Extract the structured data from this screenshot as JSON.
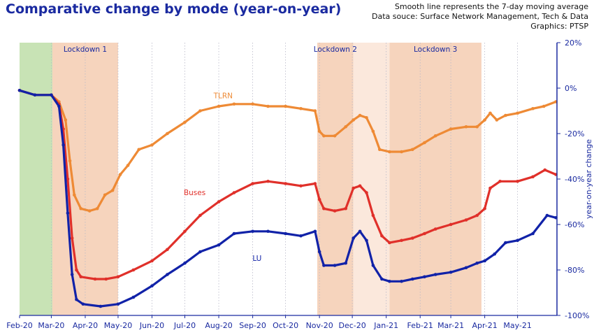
{
  "header": {
    "title": "Comparative change by mode (year-on-year)",
    "notes": [
      "Smooth line represents the 7-day moving average",
      "Data souce: Surface Network Management, Tech & Data",
      "Graphics: PTSP"
    ]
  },
  "chart_data": {
    "type": "line",
    "title": "Comparative change by mode (year-on-year)",
    "xlabel": "",
    "ylabel": "year-on-year change",
    "x_ticks": [
      "Feb-20",
      "Mar-20",
      "Apr-20",
      "May-20",
      "Jun-20",
      "Jul-20",
      "Aug-20",
      "Sep-20",
      "Oct-20",
      "Nov-20",
      "Dec-20",
      "Jan-21",
      "Feb-21",
      "Mar-21",
      "Apr-21",
      "May-21"
    ],
    "y_ticks": [
      "20%",
      "0%",
      "-20%",
      "-40%",
      "-60%",
      "-80%",
      "-100%"
    ],
    "ylim": [
      -100,
      20
    ],
    "xlim": [
      "2020-02-01",
      "2021-06-06"
    ],
    "grid": "vertical dotted monthly gridlines",
    "y_axis_side": "right",
    "shaded_periods": [
      {
        "label": "",
        "start": "2020-02-01",
        "end": "2020-03-02",
        "color": "#c8e3b5"
      },
      {
        "label": "Lockdown 1",
        "start": "2020-03-02",
        "end": "2020-05-01",
        "color": "#f6d4bd"
      },
      {
        "label": "Lockdown 2",
        "start": "2020-10-30",
        "end": "2020-12-02",
        "color": "#f6d4bd"
      },
      {
        "label": "",
        "start": "2020-12-02",
        "end": "2021-01-04",
        "color": "#fbe8dc"
      },
      {
        "label": "Lockdown 3",
        "start": "2021-01-04",
        "end": "2021-03-29",
        "color": "#f6d4bd"
      }
    ],
    "series": [
      {
        "name": "TLRN",
        "color": "#ee8a35",
        "points": [
          [
            "2020-02-01",
            -1
          ],
          [
            "2020-02-15",
            -3
          ],
          [
            "2020-03-01",
            -3
          ],
          [
            "2020-03-08",
            -6
          ],
          [
            "2020-03-14",
            -14
          ],
          [
            "2020-03-18",
            -32
          ],
          [
            "2020-03-22",
            -47
          ],
          [
            "2020-03-28",
            -53
          ],
          [
            "2020-04-05",
            -54
          ],
          [
            "2020-04-12",
            -53
          ],
          [
            "2020-04-19",
            -47
          ],
          [
            "2020-04-26",
            -45
          ],
          [
            "2020-05-03",
            -38
          ],
          [
            "2020-05-10",
            -34
          ],
          [
            "2020-05-20",
            -27
          ],
          [
            "2020-06-01",
            -25
          ],
          [
            "2020-06-15",
            -20
          ],
          [
            "2020-07-01",
            -15
          ],
          [
            "2020-07-15",
            -10
          ],
          [
            "2020-08-01",
            -8
          ],
          [
            "2020-08-15",
            -7
          ],
          [
            "2020-09-01",
            -7
          ],
          [
            "2020-09-15",
            -8
          ],
          [
            "2020-10-01",
            -8
          ],
          [
            "2020-10-15",
            -9
          ],
          [
            "2020-10-28",
            -10
          ],
          [
            "2020-11-01",
            -19
          ],
          [
            "2020-11-05",
            -21
          ],
          [
            "2020-11-15",
            -21
          ],
          [
            "2020-11-25",
            -17
          ],
          [
            "2020-12-02",
            -14
          ],
          [
            "2020-12-08",
            -12
          ],
          [
            "2020-12-14",
            -13
          ],
          [
            "2020-12-20",
            -19
          ],
          [
            "2020-12-26",
            -27
          ],
          [
            "2021-01-04",
            -28
          ],
          [
            "2021-01-15",
            -28
          ],
          [
            "2021-01-25",
            -27
          ],
          [
            "2021-02-05",
            -24
          ],
          [
            "2021-02-15",
            -21
          ],
          [
            "2021-03-01",
            -18
          ],
          [
            "2021-03-15",
            -17
          ],
          [
            "2021-03-25",
            -17
          ],
          [
            "2021-04-01",
            -14
          ],
          [
            "2021-04-06",
            -11
          ],
          [
            "2021-04-12",
            -14
          ],
          [
            "2021-04-20",
            -12
          ],
          [
            "2021-05-01",
            -11
          ],
          [
            "2021-05-15",
            -9
          ],
          [
            "2021-05-25",
            -8
          ],
          [
            "2021-06-05",
            -6
          ]
        ]
      },
      {
        "name": "Buses",
        "color": "#e0302a",
        "points": [
          [
            "2020-02-01",
            -1
          ],
          [
            "2020-02-15",
            -3
          ],
          [
            "2020-03-01",
            -3
          ],
          [
            "2020-03-08",
            -7
          ],
          [
            "2020-03-12",
            -18
          ],
          [
            "2020-03-16",
            -40
          ],
          [
            "2020-03-20",
            -66
          ],
          [
            "2020-03-24",
            -80
          ],
          [
            "2020-03-28",
            -83
          ],
          [
            "2020-04-10",
            -84
          ],
          [
            "2020-04-20",
            -84
          ],
          [
            "2020-05-01",
            -83
          ],
          [
            "2020-05-15",
            -80
          ],
          [
            "2020-06-01",
            -76
          ],
          [
            "2020-06-15",
            -71
          ],
          [
            "2020-07-01",
            -63
          ],
          [
            "2020-07-15",
            -56
          ],
          [
            "2020-08-01",
            -50
          ],
          [
            "2020-08-15",
            -46
          ],
          [
            "2020-09-01",
            -42
          ],
          [
            "2020-09-15",
            -41
          ],
          [
            "2020-10-01",
            -42
          ],
          [
            "2020-10-15",
            -43
          ],
          [
            "2020-10-28",
            -42
          ],
          [
            "2020-11-01",
            -49
          ],
          [
            "2020-11-05",
            -53
          ],
          [
            "2020-11-15",
            -54
          ],
          [
            "2020-11-25",
            -53
          ],
          [
            "2020-12-02",
            -44
          ],
          [
            "2020-12-08",
            -43
          ],
          [
            "2020-12-14",
            -46
          ],
          [
            "2020-12-20",
            -56
          ],
          [
            "2020-12-28",
            -65
          ],
          [
            "2021-01-04",
            -68
          ],
          [
            "2021-01-15",
            -67
          ],
          [
            "2021-01-25",
            -66
          ],
          [
            "2021-02-05",
            -64
          ],
          [
            "2021-02-15",
            -62
          ],
          [
            "2021-03-01",
            -60
          ],
          [
            "2021-03-15",
            -58
          ],
          [
            "2021-03-25",
            -56
          ],
          [
            "2021-04-01",
            -53
          ],
          [
            "2021-04-06",
            -44
          ],
          [
            "2021-04-15",
            -41
          ],
          [
            "2021-05-01",
            -41
          ],
          [
            "2021-05-15",
            -39
          ],
          [
            "2021-05-26",
            -36
          ],
          [
            "2021-06-05",
            -38
          ]
        ]
      },
      {
        "name": "LU",
        "color": "#1122a8",
        "points": [
          [
            "2020-02-01",
            -1
          ],
          [
            "2020-02-15",
            -3
          ],
          [
            "2020-03-01",
            -3
          ],
          [
            "2020-03-08",
            -8
          ],
          [
            "2020-03-12",
            -25
          ],
          [
            "2020-03-16",
            -55
          ],
          [
            "2020-03-20",
            -82
          ],
          [
            "2020-03-24",
            -93
          ],
          [
            "2020-03-30",
            -95
          ],
          [
            "2020-04-15",
            -96
          ],
          [
            "2020-05-01",
            -95
          ],
          [
            "2020-05-15",
            -92
          ],
          [
            "2020-06-01",
            -87
          ],
          [
            "2020-06-15",
            -82
          ],
          [
            "2020-07-01",
            -77
          ],
          [
            "2020-07-15",
            -72
          ],
          [
            "2020-08-01",
            -69
          ],
          [
            "2020-08-15",
            -64
          ],
          [
            "2020-09-01",
            -63
          ],
          [
            "2020-09-15",
            -63
          ],
          [
            "2020-10-01",
            -64
          ],
          [
            "2020-10-15",
            -65
          ],
          [
            "2020-10-28",
            -63
          ],
          [
            "2020-11-01",
            -72
          ],
          [
            "2020-11-05",
            -78
          ],
          [
            "2020-11-15",
            -78
          ],
          [
            "2020-11-25",
            -77
          ],
          [
            "2020-12-02",
            -66
          ],
          [
            "2020-12-08",
            -63
          ],
          [
            "2020-12-14",
            -67
          ],
          [
            "2020-12-20",
            -78
          ],
          [
            "2020-12-28",
            -84
          ],
          [
            "2021-01-04",
            -85
          ],
          [
            "2021-01-15",
            -85
          ],
          [
            "2021-01-25",
            -84
          ],
          [
            "2021-02-05",
            -83
          ],
          [
            "2021-02-15",
            -82
          ],
          [
            "2021-03-01",
            -81
          ],
          [
            "2021-03-15",
            -79
          ],
          [
            "2021-03-25",
            -77
          ],
          [
            "2021-04-01",
            -76
          ],
          [
            "2021-04-10",
            -73
          ],
          [
            "2021-04-20",
            -68
          ],
          [
            "2021-05-01",
            -67
          ],
          [
            "2021-05-15",
            -64
          ],
          [
            "2021-05-28",
            -56
          ],
          [
            "2021-06-05",
            -57
          ]
        ]
      }
    ]
  }
}
